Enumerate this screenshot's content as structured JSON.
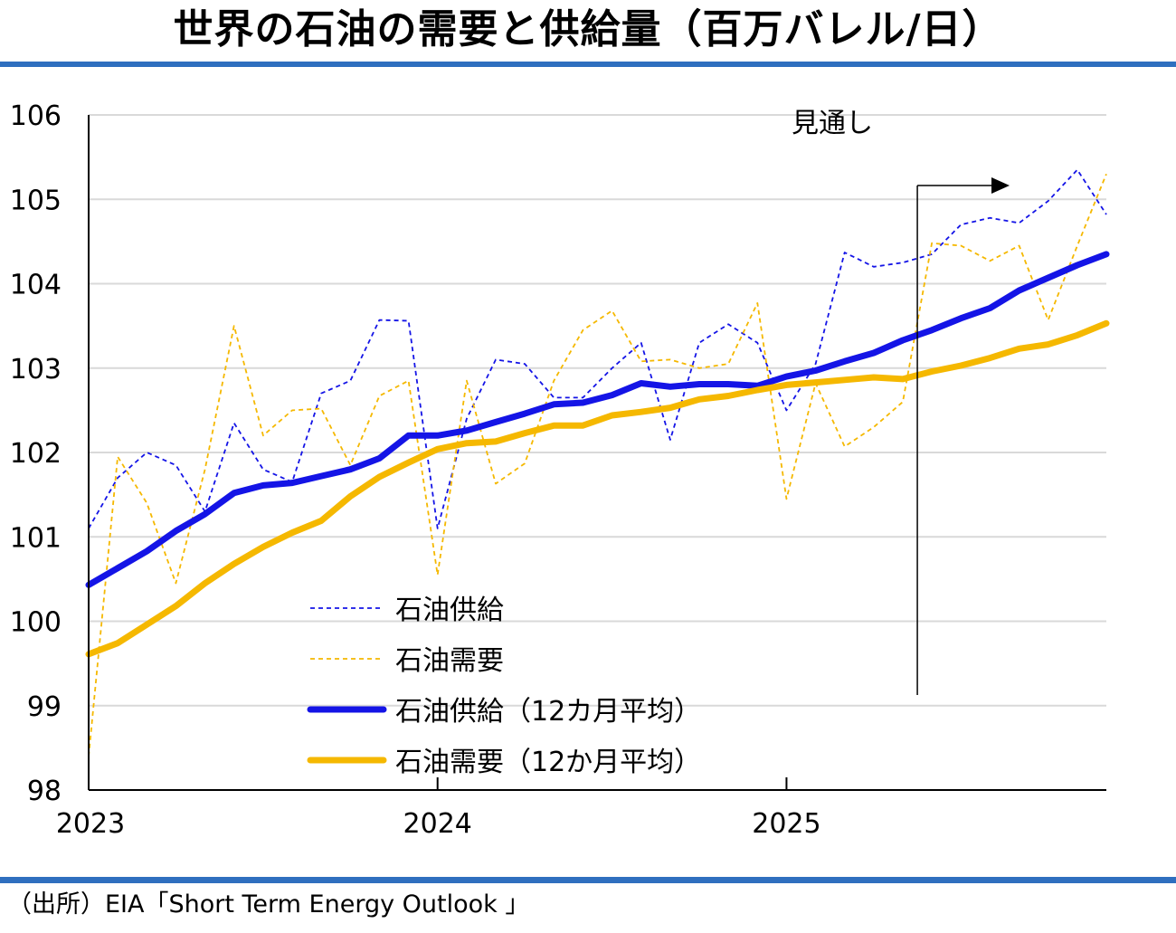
{
  "title": "世界の石油の需要と供給量（百万バレル/日）",
  "source": "（出所）EIA「Short Term Energy Outlook 」",
  "colors": {
    "rule": "#2f6fbf",
    "supply": "#1414e6",
    "demand": "#f5b800",
    "grid": "#d9d9d9",
    "axis": "#000000"
  },
  "chart_data": {
    "type": "line",
    "ylim": [
      98,
      106
    ],
    "yticks": [
      "98",
      "99",
      "100",
      "101",
      "102",
      "103",
      "104",
      "105",
      "106"
    ],
    "xticks": [
      {
        "label": "2023",
        "month": 0
      },
      {
        "label": "2024",
        "month": 12
      },
      {
        "label": "2025",
        "month": 24
      }
    ],
    "months": 36,
    "grid": true,
    "forecast": {
      "label": "見通し",
      "start_month": 28.5
    },
    "series": [
      {
        "name": "石油供給",
        "style": "dashed-thin",
        "color": "#1414e6",
        "values": [
          101.1,
          101.7,
          102.0,
          101.85,
          101.3,
          102.35,
          101.8,
          101.65,
          102.7,
          102.85,
          103.57,
          103.56,
          101.1,
          102.4,
          103.1,
          103.05,
          102.65,
          102.65,
          103.0,
          103.3,
          102.15,
          103.3,
          103.52,
          103.3,
          102.5,
          103.05,
          104.37,
          104.2,
          104.25,
          104.35,
          104.7,
          104.78,
          104.72,
          104.98,
          105.35,
          104.82
        ]
      },
      {
        "name": "石油需要",
        "style": "dashed-thin",
        "color": "#f5b800",
        "values": [
          98.4,
          101.95,
          101.4,
          100.45,
          101.8,
          103.5,
          102.2,
          102.5,
          102.52,
          101.85,
          102.67,
          102.85,
          100.55,
          102.85,
          101.63,
          101.87,
          102.85,
          103.45,
          103.68,
          103.08,
          103.1,
          103.0,
          103.05,
          103.77,
          101.45,
          102.82,
          102.07,
          102.3,
          102.6,
          104.48,
          104.45,
          104.27,
          104.45,
          103.57,
          104.45,
          105.3
        ]
      },
      {
        "name": "石油供給（12カ月平均）",
        "style": "solid-thick",
        "color": "#1414e6",
        "values": [
          100.43,
          100.63,
          100.83,
          101.07,
          101.27,
          101.52,
          101.61,
          101.64,
          101.72,
          101.8,
          101.93,
          102.2,
          102.2,
          102.26,
          102.36,
          102.46,
          102.57,
          102.59,
          102.68,
          102.82,
          102.78,
          102.81,
          102.81,
          102.79,
          102.9,
          102.97,
          103.08,
          103.18,
          103.33,
          103.45,
          103.59,
          103.71,
          103.92,
          104.07,
          104.22,
          104.35
        ]
      },
      {
        "name": "石油需要（12か月平均）",
        "style": "solid-thick",
        "color": "#f5b800",
        "values": [
          99.61,
          99.74,
          99.96,
          100.18,
          100.45,
          100.68,
          100.88,
          101.05,
          101.19,
          101.48,
          101.71,
          101.88,
          102.04,
          102.11,
          102.13,
          102.23,
          102.32,
          102.32,
          102.44,
          102.48,
          102.53,
          102.63,
          102.67,
          102.74,
          102.8,
          102.83,
          102.86,
          102.89,
          102.87,
          102.96,
          103.03,
          103.12,
          103.23,
          103.28,
          103.39,
          103.53
        ]
      }
    ]
  },
  "legend": [
    {
      "label": "石油供給",
      "style": "dashed-thin",
      "color": "#1414e6"
    },
    {
      "label": "石油需要",
      "style": "dashed-thin",
      "color": "#f5b800"
    },
    {
      "label": "石油供給（12カ月平均）",
      "style": "solid-thick",
      "color": "#1414e6"
    },
    {
      "label": "石油需要（12か月平均）",
      "style": "solid-thick",
      "color": "#f5b800"
    }
  ]
}
